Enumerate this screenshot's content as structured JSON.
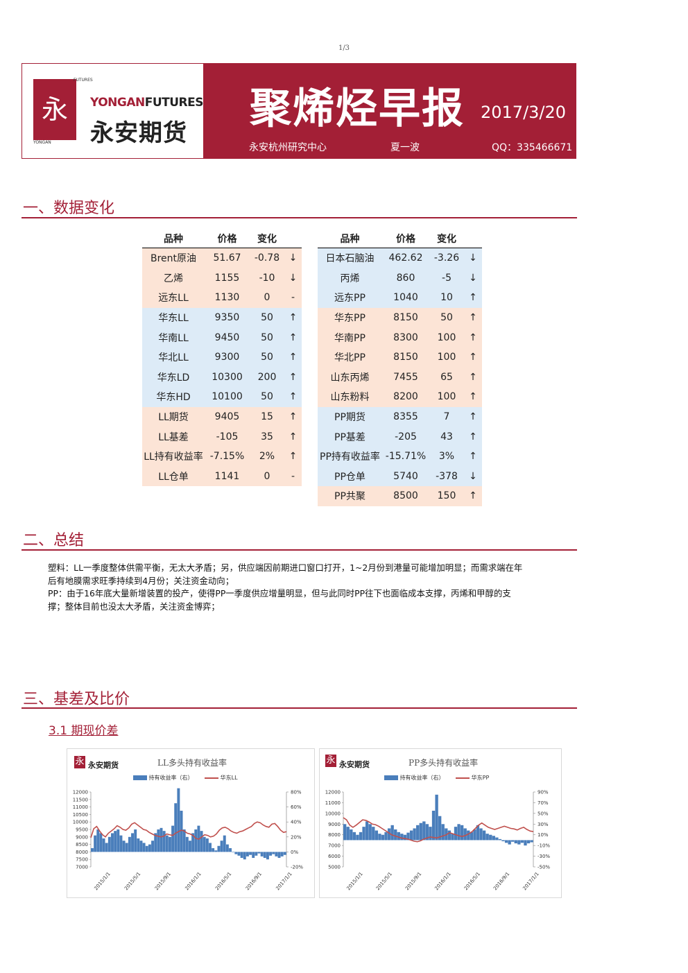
{
  "page_number": "1/3",
  "header": {
    "logo_en_yongan": "YONGAN",
    "logo_en_futures": "FUTURES",
    "logo_cn": "永安期货",
    "logo_mark": "永",
    "logo_small_top": "FUTURES",
    "logo_small_bottom": "YONGAN",
    "title": "聚烯烃早报",
    "date": "2017/3/20",
    "research_center": "永安杭州研究中心",
    "author": "夏一波",
    "qq": "QQ：335466671"
  },
  "sections": {
    "s1": "一、数据变化",
    "s2": "二、总结",
    "s3": "三、基差及比价",
    "s31": "3.1 期现价差"
  },
  "table_headers": [
    "品种",
    "价格",
    "变化"
  ],
  "left_table": [
    {
      "name": "Brent原油",
      "price": "51.67",
      "change": "-0.78",
      "arrow": "↓",
      "color": "orange"
    },
    {
      "name": "乙烯",
      "price": "1155",
      "change": "-10",
      "arrow": "↓",
      "color": "orange"
    },
    {
      "name": "远东LL",
      "price": "1130",
      "change": "0",
      "arrow": "-",
      "color": "orange"
    },
    {
      "name": "华东LL",
      "price": "9350",
      "change": "50",
      "arrow": "↑",
      "color": "blue"
    },
    {
      "name": "华南LL",
      "price": "9450",
      "change": "50",
      "arrow": "↑",
      "color": "blue"
    },
    {
      "name": "华北LL",
      "price": "9300",
      "change": "50",
      "arrow": "↑",
      "color": "blue"
    },
    {
      "name": "华东LD",
      "price": "10300",
      "change": "200",
      "arrow": "↑",
      "color": "blue"
    },
    {
      "name": "华东HD",
      "price": "10100",
      "change": "50",
      "arrow": "↑",
      "color": "blue"
    },
    {
      "name": "LL期货",
      "price": "9405",
      "change": "15",
      "arrow": "↑",
      "color": "orange"
    },
    {
      "name": "LL基差",
      "price": "-105",
      "change": "35",
      "arrow": "↑",
      "color": "orange"
    },
    {
      "name": "LL持有收益率",
      "price": "-7.15%",
      "change": "2%",
      "arrow": "↑",
      "color": "orange"
    },
    {
      "name": "LL仓单",
      "price": "1141",
      "change": "0",
      "arrow": "-",
      "color": "orange"
    }
  ],
  "right_table": [
    {
      "name": "日本石脑油",
      "price": "462.62",
      "change": "-3.26",
      "arrow": "↓",
      "color": "blue"
    },
    {
      "name": "丙烯",
      "price": "860",
      "change": "-5",
      "arrow": "↓",
      "color": "blue"
    },
    {
      "name": "远东PP",
      "price": "1040",
      "change": "10",
      "arrow": "↑",
      "color": "blue"
    },
    {
      "name": "华东PP",
      "price": "8150",
      "change": "50",
      "arrow": "↑",
      "color": "orange"
    },
    {
      "name": "华南PP",
      "price": "8300",
      "change": "100",
      "arrow": "↑",
      "color": "orange"
    },
    {
      "name": "华北PP",
      "price": "8150",
      "change": "100",
      "arrow": "↑",
      "color": "orange"
    },
    {
      "name": "山东丙烯",
      "price": "7455",
      "change": "65",
      "arrow": "↑",
      "color": "orange"
    },
    {
      "name": "山东粉料",
      "price": "8200",
      "change": "100",
      "arrow": "↑",
      "color": "orange"
    },
    {
      "name": "PP期货",
      "price": "8355",
      "change": "7",
      "arrow": "↑",
      "color": "blue"
    },
    {
      "name": "PP基差",
      "price": "-205",
      "change": "43",
      "arrow": "↑",
      "color": "blue"
    },
    {
      "name": "PP持有收益率",
      "price": "-15.71%",
      "change": "3%",
      "arrow": "↑",
      "color": "blue"
    },
    {
      "name": "PP仓单",
      "price": "5740",
      "change": "-378",
      "arrow": "↓",
      "color": "blue"
    },
    {
      "name": "PP共聚",
      "price": "8500",
      "change": "150",
      "arrow": "↑",
      "color": "orange"
    }
  ],
  "summary": {
    "line1": "塑料：LL一季度整体供需平衡，无太大矛盾；另，供应端因前期进口窗口打开，1~2月份到港量可能增加明显；而需求端在年",
    "line2": "后有地膜需求旺季持续到4月份；关注资金动向；",
    "line3": "PP：由于16年底大量新增装置的投产，使得PP一季度供应增量明显，但与此同时PP往下也面临成本支撑，丙烯和甲醇的支",
    "line4": "撑；整体目前也没太大矛盾，关注资金博弈；"
  },
  "colors": {
    "brand_red": "#a31f36",
    "orange_cell": "#fce4d6",
    "blue_cell": "#ddebf7",
    "bar_blue": "#4a7ebb",
    "line_red": "#c0504d"
  },
  "chart_data": [
    {
      "type": "bar+line",
      "title": "LL多头持有收益率",
      "legend": [
        "持有收益率（右）",
        "华东LL"
      ],
      "left_ticks": [
        "12000",
        "11500",
        "11000",
        "10500",
        "10000",
        "9500",
        "9000",
        "8500",
        "8000",
        "7500",
        "7000"
      ],
      "right_ticks": [
        "80%",
        "60%",
        "40%",
        "20%",
        "0%",
        "-20%"
      ],
      "x_ticks": [
        "2015/1/1",
        "2015/5/1",
        "2015/9/1",
        "2016/1/1",
        "2016/5/1",
        "2016/9/1",
        "2017/1/1"
      ],
      "ylim_left": [
        7000,
        12000
      ],
      "ylim_right": [
        -20,
        80
      ],
      "line_values": [
        8950,
        9550,
        9700,
        9400,
        9150,
        9000,
        9250,
        9400,
        9550,
        9750,
        9650,
        9500,
        9450,
        9600,
        9850,
        9950,
        9800,
        9650,
        9500,
        9450,
        9300,
        9200,
        9100,
        9050,
        9000,
        9050,
        9200,
        9150,
        9100,
        9250,
        9350,
        9450,
        9400,
        9250,
        9200,
        9100,
        8900,
        8850,
        9000,
        9150,
        9100,
        9000,
        9050,
        9200,
        9450,
        9600,
        9650,
        9550,
        9400,
        9300,
        9250,
        9350,
        9400,
        9500,
        9600,
        9700,
        9900,
        10000,
        9950,
        9800,
        9700,
        9650,
        9850,
        9900,
        9700,
        9450,
        9300,
        9350
      ],
      "bar_values": [
        5,
        22,
        30,
        25,
        18,
        12,
        20,
        25,
        28,
        30,
        22,
        15,
        12,
        20,
        25,
        30,
        18,
        15,
        12,
        8,
        10,
        15,
        25,
        30,
        32,
        28,
        22,
        20,
        35,
        65,
        85,
        55,
        30,
        20,
        15,
        25,
        30,
        35,
        28,
        20,
        18,
        12,
        5,
        2,
        8,
        15,
        22,
        10,
        5,
        0,
        -3,
        -5,
        -8,
        -10,
        -6,
        -4,
        -8,
        -5,
        -2,
        -6,
        -8,
        -10,
        -5,
        -3,
        -6,
        -8,
        -6,
        -4
      ]
    },
    {
      "type": "bar+line",
      "title": "PP多头持有收益率",
      "legend": [
        "持有收益率（右）",
        "华东PP"
      ],
      "left_ticks": [
        "12000",
        "11000",
        "10000",
        "9000",
        "8000",
        "7000",
        "6000",
        "5000"
      ],
      "right_ticks": [
        "90%",
        "70%",
        "50%",
        "30%",
        "10%",
        "-10%",
        "-30%",
        "-50%"
      ],
      "x_ticks": [
        "2015/1/1",
        "2015/5/1",
        "2015/9/1",
        "2016/1/1",
        "2016/5/1",
        "2016/9/1",
        "2017/1/1"
      ],
      "ylim_left": [
        5000,
        12000
      ],
      "ylim_right": [
        -50,
        90
      ],
      "line_values": [
        9600,
        9400,
        8900,
        8700,
        8900,
        9150,
        9400,
        9350,
        9200,
        9000,
        8950,
        8800,
        8600,
        8400,
        8200,
        8000,
        7900,
        7800,
        7700,
        7650,
        7600,
        7500,
        7400,
        7350,
        7450,
        7600,
        7700,
        7800,
        7750,
        7700,
        7800,
        7900,
        8000,
        8200,
        8100,
        8000,
        7900,
        7850,
        7950,
        8100,
        8300,
        8600,
        8900,
        9100,
        8900,
        8700,
        8600,
        8500,
        8600,
        8700,
        8800,
        8700,
        8600,
        8550,
        8450,
        8600,
        8700,
        8500,
        8350,
        8300
      ],
      "bar_values": [
        30,
        25,
        20,
        15,
        10,
        15,
        25,
        35,
        30,
        25,
        18,
        12,
        10,
        15,
        22,
        28,
        20,
        15,
        12,
        10,
        14,
        18,
        22,
        28,
        32,
        35,
        30,
        25,
        55,
        85,
        45,
        30,
        22,
        18,
        12,
        25,
        30,
        28,
        22,
        18,
        15,
        20,
        28,
        22,
        18,
        12,
        10,
        8,
        5,
        2,
        -2,
        -5,
        -8,
        -3,
        -6,
        -8,
        -5,
        -10,
        -6,
        -4
      ]
    }
  ]
}
